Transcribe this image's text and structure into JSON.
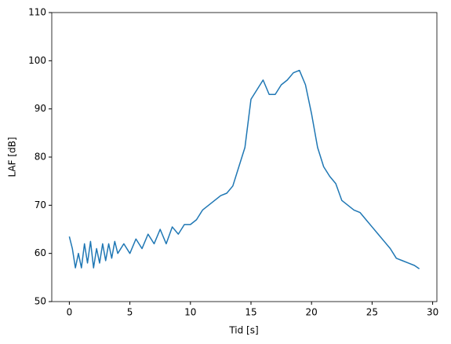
{
  "chart_data": {
    "type": "line",
    "x_label": "Tid [s]",
    "y_label": "LAF [dB]",
    "x": [
      0,
      0.25,
      0.5,
      0.75,
      1,
      1.25,
      1.5,
      1.75,
      2,
      2.25,
      2.5,
      2.75,
      3,
      3.25,
      3.5,
      3.75,
      4,
      4.5,
      5,
      5.5,
      6,
      6.5,
      7,
      7.5,
      8,
      8.5,
      9,
      9.5,
      10,
      10.5,
      11,
      11.5,
      12,
      12.5,
      13,
      13.5,
      14,
      14.5,
      15,
      15.5,
      16,
      16.5,
      17,
      17.5,
      18,
      18.5,
      19,
      19.5,
      20,
      20.5,
      21,
      21.5,
      22,
      22.5,
      23,
      23.5,
      24,
      24.5,
      25,
      25.5,
      26,
      26.5,
      27,
      27.5,
      28,
      28.5,
      28.9
    ],
    "series": [
      {
        "name": "LAF",
        "color": "#1f77b4",
        "values": [
          63.5,
          61,
          57,
          60,
          57,
          62,
          58,
          62.5,
          57,
          61,
          58,
          62,
          58.5,
          62,
          59,
          62.5,
          60,
          62,
          60,
          63,
          61,
          64,
          62,
          65,
          62,
          65.5,
          64,
          66,
          66,
          67,
          69,
          70,
          71,
          72,
          72.5,
          74,
          78,
          82,
          92,
          94,
          96,
          93,
          93,
          95,
          96,
          97.5,
          98,
          95,
          89,
          82,
          78,
          76,
          74.5,
          71,
          70,
          69,
          68.5,
          67,
          65.5,
          64,
          62.5,
          61,
          59,
          58.5,
          58,
          57.5,
          56.8
        ]
      }
    ],
    "xlim": [
      -1.45,
      30.35
    ],
    "xticks": [
      0,
      5,
      10,
      15,
      20,
      25,
      30
    ],
    "ylim": [
      50,
      110
    ],
    "yticks": [
      50,
      60,
      70,
      80,
      90,
      100,
      110
    ],
    "grid": false
  }
}
